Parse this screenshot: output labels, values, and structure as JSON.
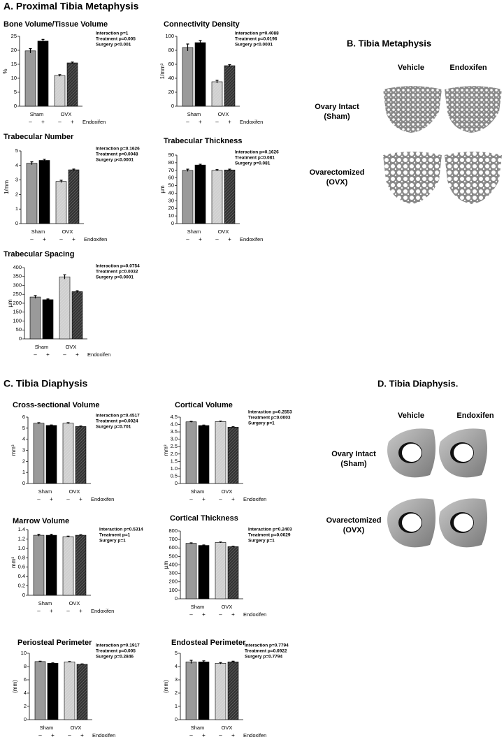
{
  "section_a": "A.  Proximal Tibia Metaphysis",
  "section_c": "C.  Tibia Diaphysis",
  "panel_b": {
    "title": "B. Tibia Metaphysis",
    "columns": [
      "Vehicle",
      "Endoxifen"
    ],
    "rows": [
      [
        "Ovary Intact",
        "(Sham)"
      ],
      [
        "Ovarectomized",
        "(OVX)"
      ]
    ]
  },
  "panel_d": {
    "title": "D. Tibia Diaphysis.",
    "columns": [
      "Vehicle",
      "Endoxifen"
    ],
    "rows": [
      [
        "Ovary Intact",
        "(Sham)"
      ],
      [
        "Ovarectomized",
        "(OVX)"
      ]
    ]
  },
  "chart_data": [
    {
      "type": "bar",
      "title": "Bone Volume/Tissue Volume",
      "ylabel": "%",
      "groups": [
        "Sham",
        "OVX"
      ],
      "categories": [
        "–",
        "+",
        "–",
        "+"
      ],
      "treatment_label": "Endoxifen",
      "stats": [
        "Interaction p=1",
        "Treatment p=0.005",
        "Surgery p<0.001"
      ],
      "values": [
        19.8,
        23.3,
        11,
        15.5
      ],
      "errors": [
        0.8,
        0.6,
        0.3,
        0.3
      ],
      "colors": [
        "#9a9a9a",
        "#000000",
        "#cfcfcf",
        "#333333"
      ],
      "hatched": [
        false,
        false,
        true,
        true
      ],
      "ylim": [
        0,
        25
      ],
      "yticks": [
        0,
        5,
        10,
        15,
        20,
        25
      ]
    },
    {
      "type": "bar",
      "title": "Connectivity Density",
      "ylabel": "1/mm³",
      "groups": [
        "Sham",
        "OVX"
      ],
      "categories": [
        "–",
        "+",
        "–",
        "+"
      ],
      "treatment_label": "Endoxifen",
      "stats": [
        "Interaction p=0.4088",
        "Treatment p=0.0196",
        "Surgery p<0.0001"
      ],
      "values": [
        84,
        91,
        35,
        58
      ],
      "errors": [
        5,
        3,
        2,
        1.5
      ],
      "colors": [
        "#9a9a9a",
        "#000000",
        "#cfcfcf",
        "#333333"
      ],
      "hatched": [
        false,
        false,
        true,
        true
      ],
      "ylim": [
        0,
        100
      ],
      "yticks": [
        0,
        20,
        40,
        60,
        80,
        100
      ]
    },
    {
      "type": "bar",
      "title": "Trabecular Number",
      "ylabel": "1/mm",
      "groups": [
        "Sham",
        "OVX"
      ],
      "categories": [
        "–",
        "+",
        "–",
        "+"
      ],
      "treatment_label": "Endoxifen",
      "stats": [
        "Interaction p=0.1626",
        "Treatment p=0.0048",
        "Surgery p<0.0001"
      ],
      "values": [
        4.15,
        4.35,
        2.9,
        3.7
      ],
      "errors": [
        0.1,
        0.07,
        0.08,
        0.05
      ],
      "colors": [
        "#9a9a9a",
        "#000000",
        "#cfcfcf",
        "#333333"
      ],
      "hatched": [
        false,
        false,
        true,
        true
      ],
      "ylim": [
        0,
        5
      ],
      "yticks": [
        0,
        1,
        2,
        3,
        4,
        5
      ]
    },
    {
      "type": "bar",
      "title": "Trabecular Thickness",
      "ylabel": "µm",
      "groups": [
        "Sham",
        "OVX"
      ],
      "categories": [
        "–",
        "+",
        "–",
        "+"
      ],
      "treatment_label": "Endoxifen",
      "stats": [
        "Interaction p=0.1626",
        "Treatment p=0.081",
        "Surgery p=0.081"
      ],
      "values": [
        70,
        77,
        70,
        70.5
      ],
      "errors": [
        1.5,
        1,
        1,
        1
      ],
      "colors": [
        "#9a9a9a",
        "#000000",
        "#cfcfcf",
        "#333333"
      ],
      "hatched": [
        false,
        false,
        true,
        true
      ],
      "ylim": [
        0,
        90
      ],
      "yticks": [
        0,
        10,
        20,
        30,
        40,
        50,
        60,
        70,
        80,
        90
      ]
    },
    {
      "type": "bar",
      "title": "Trabecular Spacing",
      "ylabel": "µm",
      "groups": [
        "Sham",
        "OVX"
      ],
      "categories": [
        "–",
        "+",
        "–",
        "+"
      ],
      "treatment_label": "Endoxifen",
      "stats": [
        "Interaction p=0.0754",
        "Treatment p=0.0032",
        "Surgery p<0.0001"
      ],
      "values": [
        235,
        220,
        348,
        265
      ],
      "errors": [
        8,
        4,
        12,
        5
      ],
      "colors": [
        "#9a9a9a",
        "#000000",
        "#cfcfcf",
        "#333333"
      ],
      "hatched": [
        false,
        false,
        true,
        true
      ],
      "ylim": [
        0,
        400
      ],
      "yticks": [
        0,
        50,
        100,
        150,
        200,
        250,
        300,
        350,
        400
      ]
    },
    {
      "type": "bar",
      "title": "Cross-sectional Volume",
      "ylabel": "mm³",
      "groups": [
        "Sham",
        "OVX"
      ],
      "categories": [
        "–",
        "+",
        "–",
        "+"
      ],
      "treatment_label": "Endoxifen",
      "stats": [
        "Interaction p=0.4517",
        "Treatment p=0.0024",
        "Surgery p=0.701"
      ],
      "values": [
        5.45,
        5.25,
        5.45,
        5.15
      ],
      "errors": [
        0.05,
        0.04,
        0.05,
        0.05
      ],
      "colors": [
        "#9a9a9a",
        "#000000",
        "#cfcfcf",
        "#333333"
      ],
      "hatched": [
        false,
        false,
        true,
        true
      ],
      "ylim": [
        0,
        6
      ],
      "yticks": [
        0,
        1,
        2,
        3,
        4,
        5,
        6
      ]
    },
    {
      "type": "bar",
      "title": "Cortical Volume",
      "ylabel": "mm³",
      "groups": [
        "Sham",
        "OVX"
      ],
      "categories": [
        "–",
        "+",
        "–",
        "+"
      ],
      "treatment_label": "Endoxifen",
      "stats": [
        "Interaction p=0.2553",
        "Treatment p=0.0003",
        "Surgery p=1"
      ],
      "values": [
        4.18,
        3.93,
        4.2,
        3.82
      ],
      "errors": [
        0.03,
        0.03,
        0.03,
        0.03
      ],
      "colors": [
        "#9a9a9a",
        "#000000",
        "#cfcfcf",
        "#333333"
      ],
      "hatched": [
        false,
        false,
        true,
        true
      ],
      "ylim": [
        0,
        4.5
      ],
      "yticks": [
        0,
        0.5,
        {
          "value": 1,
          "label": "1.0"
        },
        1.5,
        {
          "value": 2,
          "label": "2.0"
        },
        2.5,
        {
          "value": 3,
          "label": "3.0"
        },
        3.5,
        {
          "value": 4,
          "label": "4.0"
        },
        4.5
      ]
    },
    {
      "type": "bar",
      "title": "Marrow Volume",
      "ylabel": "mm³",
      "groups": [
        "Sham",
        "OVX"
      ],
      "categories": [
        "–",
        "+",
        "–",
        "+"
      ],
      "treatment_label": "Endoxifen",
      "stats": [
        "Interaction p=0.5314",
        "Treatment p=1",
        "Surgery p=1"
      ],
      "values": [
        1.28,
        1.28,
        1.25,
        1.28
      ],
      "errors": [
        0.02,
        0.02,
        0.01,
        0.01
      ],
      "colors": [
        "#9a9a9a",
        "#000000",
        "#cfcfcf",
        "#333333"
      ],
      "hatched": [
        false,
        false,
        true,
        true
      ],
      "ylim": [
        0,
        1.4
      ],
      "yticks": [
        0,
        0.2,
        0.4,
        0.6,
        0.8,
        {
          "value": 1,
          "label": "1.0"
        },
        1.2,
        1.4
      ]
    },
    {
      "type": "bar",
      "title": "Cortical Thickness",
      "ylabel": "µm",
      "groups": [
        "Sham",
        "OVX"
      ],
      "categories": [
        "–",
        "+",
        "–",
        "+"
      ],
      "treatment_label": "Endoxifen",
      "stats": [
        "Interaction p=0.2403",
        "Treatment p=0.0029",
        "Surgery p=1"
      ],
      "values": [
        655,
        630,
        665,
        615
      ],
      "errors": [
        5,
        5,
        5,
        5
      ],
      "colors": [
        "#9a9a9a",
        "#000000",
        "#cfcfcf",
        "#333333"
      ],
      "hatched": [
        false,
        false,
        true,
        true
      ],
      "ylim": [
        0,
        800
      ],
      "yticks": [
        0,
        100,
        200,
        300,
        400,
        500,
        600,
        700,
        800
      ]
    },
    {
      "type": "bar",
      "title": "Periosteal Perimeter",
      "ylabel": "(mm)",
      "groups": [
        "Sham",
        "OVX"
      ],
      "categories": [
        "–",
        "+",
        "–",
        "+"
      ],
      "treatment_label": "Endoxifen",
      "stats": [
        "Interaction p=0.1917",
        "Treatment p=0.005",
        "Surgery p=0.2846"
      ],
      "values": [
        8.75,
        8.5,
        8.7,
        8.35
      ],
      "errors": [
        0.05,
        0.05,
        0.05,
        0.05
      ],
      "colors": [
        "#9a9a9a",
        "#000000",
        "#cfcfcf",
        "#333333"
      ],
      "hatched": [
        false,
        false,
        true,
        true
      ],
      "ylim": [
        0,
        10
      ],
      "yticks": [
        0,
        2,
        4,
        6,
        8,
        10
      ]
    },
    {
      "type": "bar",
      "title": "Endosteal Perimeter",
      "ylabel": "(mm)",
      "groups": [
        "Sham",
        "OVX"
      ],
      "categories": [
        "–",
        "+",
        "–",
        "+"
      ],
      "treatment_label": "Endoxifen",
      "stats": [
        "Interaction p=0.7794",
        "Treatment p=0.6922",
        "Surgery p=0.7794"
      ],
      "values": [
        4.35,
        4.35,
        4.25,
        4.35
      ],
      "errors": [
        0.12,
        0.08,
        0.05,
        0.05
      ],
      "colors": [
        "#9a9a9a",
        "#000000",
        "#cfcfcf",
        "#333333"
      ],
      "hatched": [
        false,
        false,
        true,
        true
      ],
      "ylim": [
        0,
        5
      ],
      "yticks": [
        0,
        1,
        2,
        3,
        4,
        5
      ]
    }
  ]
}
